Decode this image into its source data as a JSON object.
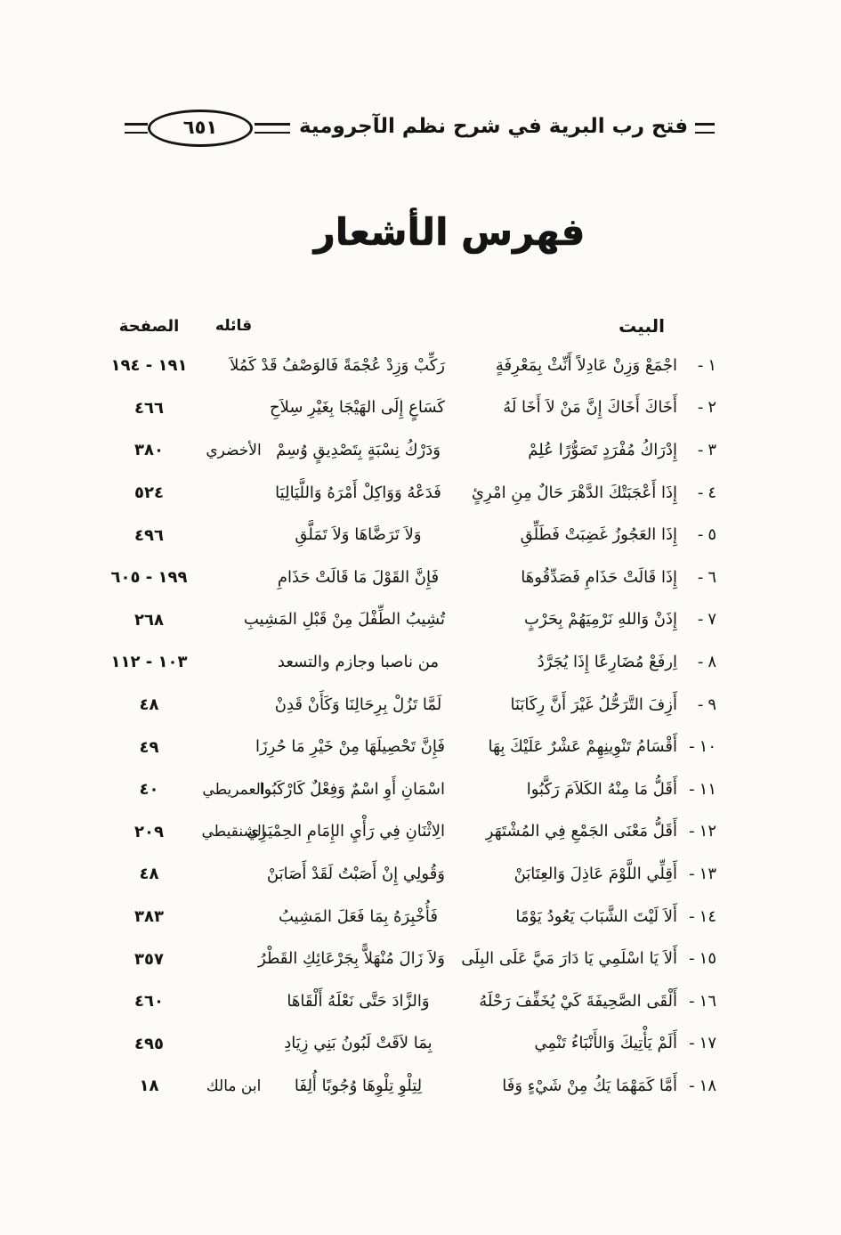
{
  "header": {
    "page_number": "٦٥١",
    "book_title": "فتح رب البرية في شرح نظم الآجرومية"
  },
  "title": "فهرس الأشعار",
  "table": {
    "col_verse": "البيت",
    "col_author": "قائله",
    "col_page": "الصفحة",
    "dash": "-",
    "rows": [
      {
        "num": "١",
        "hemistich1": "اجْمَعْ وَزِنْ عَادِلاً أَنِّثْ بِمَعْرِفَةٍ",
        "hemistich2": "رَكِّبْ وَزِدْ عُجْمَةً فَالوَصْفُ قَدْ كَمُلاَ",
        "author": "",
        "page": "١٩١ - ١٩٤"
      },
      {
        "num": "٢",
        "hemistich1": "أَخَاكَ أَخَاكَ إِنَّ مَنْ لاَ أَخَا لَهُ",
        "hemistich2": "كَسَاعٍ إِلَى الهَيْجَا بِغَيْرِ سِلاَحِ",
        "author": "",
        "page": "٤٦٦"
      },
      {
        "num": "٣",
        "hemistich1": "إِدْرَاكُ مُفْرَدٍ تَصَوُّرًا عُلِمْ",
        "hemistich2": "وَدَرْكُ نِسْبَةٍ بِتَصْدِيقٍ وُسِمْ",
        "author": "الأخضري",
        "page": "٣٨٠"
      },
      {
        "num": "٤",
        "hemistich1": "إِذَا أَعْجَبَتْكَ الدَّهْرَ حَالٌ مِنِ امْرِئٍ",
        "hemistich2": "فَدَعْهُ وَوَاكِلْ أَمْرَهُ وَاللَّيَالِيَا",
        "author": "",
        "page": "٥٢٤"
      },
      {
        "num": "٥",
        "hemistich1": "إِذَا العَجُوزُ غَضِبَتْ فَطَلِّقِ",
        "hemistich2": "وَلاَ تَرَضَّاهَا وَلاَ تَمَلَّقِ",
        "author": "",
        "page": "٤٩٦"
      },
      {
        "num": "٦",
        "hemistich1": "إِذَا قَالَتْ حَذَامِ فَصَدِّقُوهَا",
        "hemistich2": "فَإِنَّ القَوْلَ مَا قَالَتْ حَذَامِ",
        "author": "",
        "page": "١٩٩ - ٦٠٥"
      },
      {
        "num": "٧",
        "hemistich1": "إِذَنْ وَاللهِ نَرْمِيَهُمْ بِحَرْبٍ",
        "hemistich2": "تُشِيبُ الطِّفْلَ مِنْ قَبْلِ المَشِيبِ",
        "author": "",
        "page": "٢٦٨"
      },
      {
        "num": "٨",
        "hemistich1": "اِرفَعْ مُضَارِعًا إِذَا يُجَرَّدُ",
        "hemistich2": "من ناصبا وجازم والتسعد",
        "author": "",
        "page": "١٠٣ - ١١٢"
      },
      {
        "num": "٩",
        "hemistich1": "أَزِفَ التَّرَحُّلُ غَيْرَ أَنَّ رِكَابَنَا",
        "hemistich2": "لَمَّا تَزُلْ بِرِحَالِنَا وَكَأَنْ قَدِنْ",
        "author": "",
        "page": "٤٨"
      },
      {
        "num": "١٠",
        "hemistich1": "أَقْسَامُ تَنْوِينِهِمْ عَشْرٌ عَلَيْكَ بِهَا",
        "hemistich2": "فَإِنَّ تَحْصِيلَهَا مِنْ خَيْرِ مَا حُرِزَا",
        "author": "",
        "page": "٤٩"
      },
      {
        "num": "١١",
        "hemistich1": "أَقَلُّ مَا مِنْهُ الكَلاَمَ رَكَّبُوا",
        "hemistich2": "اسْمَانِ أَوِ اسْمٌ وَفِعْلٌ كَارْكَبُوا",
        "author": "العمريطي",
        "page": "٤٠"
      },
      {
        "num": "١٢",
        "hemistich1": "أَقَلُّ مَعْنَى الجَمْعِ فِي المُشْتَهَرِ",
        "hemistich2": "الِاثْنَانِ فِي رَأْيِ الإِمَامِ الحِمْيَرِي",
        "author": "الشنقيطي",
        "page": "٢٠٩"
      },
      {
        "num": "١٣",
        "hemistich1": "أَقِلِّي اللَّوْمَ عَاذِلَ وَالعِتَابَنْ",
        "hemistich2": "وَقُولِي إِنْ أَصَبْتُ لَقَدْ أَصَابَنْ",
        "author": "",
        "page": "٤٨"
      },
      {
        "num": "١٤",
        "hemistich1": "أَلاَ لَيْتَ الشَّبَابَ يَعُودُ يَوْمًا",
        "hemistich2": "فَأُخْبِرَهُ بِمَا فَعَلَ المَشِيبُ",
        "author": "",
        "page": "٣٨٣"
      },
      {
        "num": "١٥",
        "hemistich1": "أَلاَ يَا اسْلَمِي يَا دَارَ مَيَّ عَلَى البِلَى",
        "hemistich2": "وَلاَ زَالَ مُنْهَلاًّ بِجَرْعَائِكِ القَطْرُ",
        "author": "",
        "page": "٣٥٧"
      },
      {
        "num": "١٦",
        "hemistich1": "أَلْقَى الصَّحِيفَةَ كَيْ يُخَفِّفَ رَحْلَهُ",
        "hemistich2": "وَالزَّادَ حَتَّى نَعْلَهُ أَلْقَاهَا",
        "author": "",
        "page": "٤٦٠"
      },
      {
        "num": "١٧",
        "hemistich1": "أَلَمْ يَأْتِيكَ وَالأَنْبَاءُ تَنْمِي",
        "hemistich2": "بِمَا لاَقَتْ لَبُونُ بَنِي زِيَادِ",
        "author": "",
        "page": "٤٩٥"
      },
      {
        "num": "١٨",
        "hemistich1": "أَمَّا كَمَهْمَا يَكُ مِنْ شَيْءٍ وَفَا",
        "hemistich2": "لِتِلْوِ تِلْوِهَا وُجُوبًا أُلِفَا",
        "author": "ابن مالك",
        "page": "١٨"
      }
    ]
  }
}
